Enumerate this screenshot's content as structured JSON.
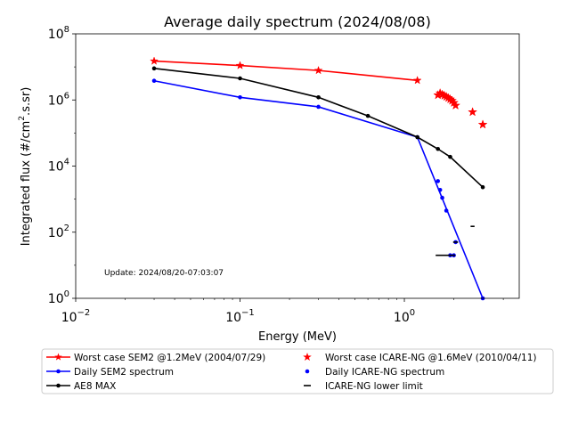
{
  "chart_data": {
    "type": "line",
    "title": "Average daily spectrum (2024/08/08)",
    "xlabel": "Energy (MeV)",
    "ylabel_parts": {
      "pre": "Integrated flux (#/cm",
      "sup": "2",
      "post": ".s.sr)"
    },
    "xscale": "log",
    "yscale": "log",
    "xlim": [
      0.01,
      5
    ],
    "ylim": [
      1,
      100000000
    ],
    "x_ticks": [
      {
        "value": 0.01,
        "base": "10",
        "exp": "−2"
      },
      {
        "value": 0.1,
        "base": "10",
        "exp": "−1"
      },
      {
        "value": 1,
        "base": "10",
        "exp": "0"
      }
    ],
    "y_ticks": [
      {
        "value": 1,
        "base": "10",
        "exp": "0"
      },
      {
        "value": 100,
        "base": "10",
        "exp": "2"
      },
      {
        "value": 10000,
        "base": "10",
        "exp": "4"
      },
      {
        "value": 1000000,
        "base": "10",
        "exp": "6"
      },
      {
        "value": 100000000,
        "base": "10",
        "exp": "8"
      }
    ],
    "annotation": "Update: 2024/08/20-07:03:07",
    "grid": false,
    "legend_position": "below plot",
    "series": [
      {
        "name": "Worst case SEM2 @1.2MeV (2004/07/29)",
        "color": "#ff0000",
        "style": "line-star",
        "x": [
          0.03,
          0.1,
          0.3,
          1.2
        ],
        "y": [
          15000000,
          11000000,
          7800000,
          3900000
        ]
      },
      {
        "name": "Daily SEM2 spectrum",
        "color": "#0000ff",
        "style": "line-dot",
        "x": [
          0.03,
          0.1,
          0.3,
          1.2,
          3.0
        ],
        "y": [
          3800000,
          1200000,
          620000,
          75000,
          1
        ]
      },
      {
        "name": "AE8 MAX",
        "color": "#000000",
        "style": "line-dot",
        "x": [
          0.03,
          0.1,
          0.3,
          0.6,
          1.2,
          1.6,
          1.9,
          3.0
        ],
        "y": [
          9000000,
          4500000,
          1200000,
          330000,
          75000,
          33000,
          19000,
          2300
        ]
      },
      {
        "name": "Worst case ICARE-NG @1.6MeV (2010/04/11)",
        "color": "#ff0000",
        "style": "star",
        "x": [
          1.6,
          1.65,
          1.7,
          1.75,
          1.8,
          1.85,
          1.9,
          1.95,
          2.0,
          2.05,
          2.6,
          3.0
        ],
        "y": [
          1400000,
          1600000,
          1450000,
          1350000,
          1250000,
          1150000,
          1050000,
          950000,
          820000,
          680000,
          430000,
          180000
        ]
      },
      {
        "name": "Daily ICARE-NG spectrum",
        "color": "#0000ff",
        "style": "dot",
        "x": [
          1.6,
          1.65,
          1.7,
          1.8,
          1.9,
          2.0,
          2.05
        ],
        "y": [
          3500,
          1900,
          1100,
          450,
          20,
          20,
          50
        ]
      },
      {
        "name": "ICARE-NG lower limit",
        "color": "#000000",
        "style": "dash",
        "x": [
          1.7,
          1.95,
          2.05,
          2.6
        ],
        "y": [
          20,
          20,
          50,
          150
        ],
        "half_width_decades": [
          0.04,
          0.02,
          0.015,
          0.012
        ]
      }
    ]
  }
}
